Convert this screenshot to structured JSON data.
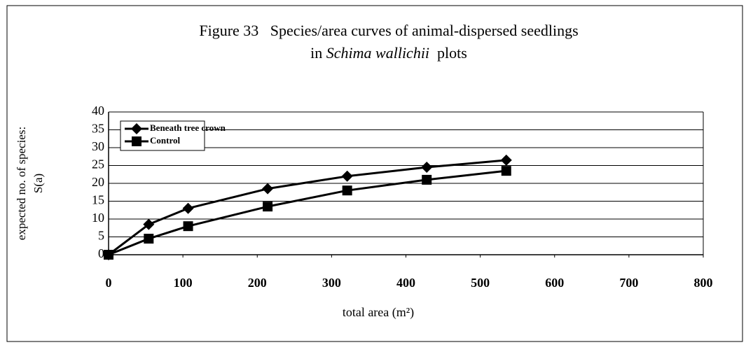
{
  "chart_data": {
    "type": "line",
    "title": [
      "Figure 33   Species/area curves of animal-dispersed seedlings",
      [
        "in ",
        "Schima wallichii",
        "  plots"
      ]
    ],
    "ylabel": [
      "expected no. of species:",
      "S(a)"
    ],
    "xlabel": "total area (m²)",
    "x": [
      0,
      54,
      107,
      214,
      321,
      428,
      535
    ],
    "series": [
      {
        "name": "Beneath tree crown",
        "color": "#000000",
        "marker": "diamond",
        "values": [
          0,
          8.5,
          13,
          18.5,
          22,
          24.5,
          26.5
        ]
      },
      {
        "name": "Control",
        "color": "#000000",
        "marker": "square",
        "values": [
          0,
          4.5,
          8,
          13.5,
          18,
          21,
          23.5
        ]
      }
    ],
    "xlim": [
      0,
      800
    ],
    "xticks": [
      0,
      100,
      200,
      300,
      400,
      500,
      600,
      700,
      800
    ],
    "ylim": [
      0,
      40
    ],
    "yticks": [
      0,
      5,
      10,
      15,
      20,
      25,
      30,
      35,
      40
    ],
    "grid": true,
    "legend": "top-left"
  }
}
